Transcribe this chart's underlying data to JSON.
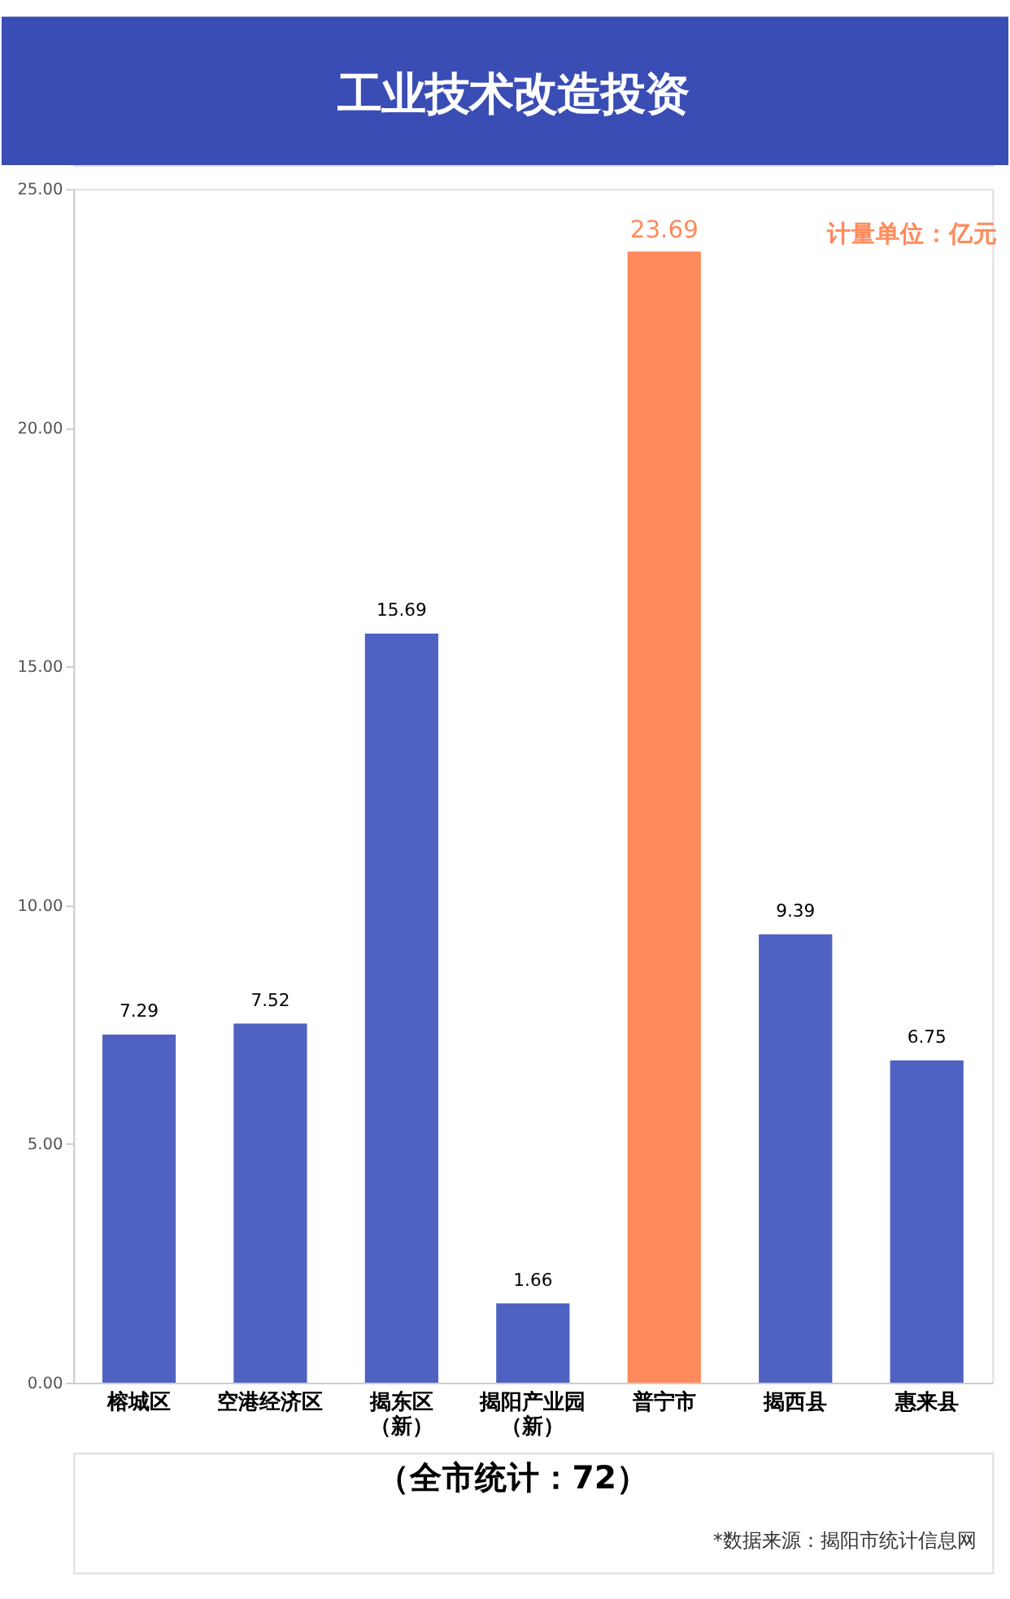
{
  "chart_data": {
    "type": "bar",
    "title": "工业技术改造投资",
    "categories": [
      "榕城区",
      "空港经济区",
      "揭东区（新）",
      "揭阳产业园（新）",
      "普宁市",
      "揭西县",
      "惠来县"
    ],
    "values": [
      7.29,
      7.52,
      15.69,
      1.66,
      23.69,
      9.39,
      6.75
    ],
    "colors": [
      "#4f62c2",
      "#4f62c2",
      "#4f62c2",
      "#4f62c2",
      "#ff8a5b",
      "#4f62c2",
      "#4f62c2"
    ],
    "ylim": [
      0,
      25
    ],
    "yticks": [
      {
        "value": 0,
        "label": "0.00"
      },
      {
        "value": 5,
        "label": "5.00"
      },
      {
        "value": 10,
        "label": "10.00"
      },
      {
        "value": 15,
        "label": "15.00"
      },
      {
        "value": 20,
        "label": "20.00"
      },
      {
        "value": 25,
        "label": "25.00"
      }
    ],
    "grid": false,
    "data_labels": true,
    "annotations": [
      "计量单位：亿元",
      "（全市统计：72）",
      "*数据来源：揭阳市统计信息网"
    ]
  }
}
